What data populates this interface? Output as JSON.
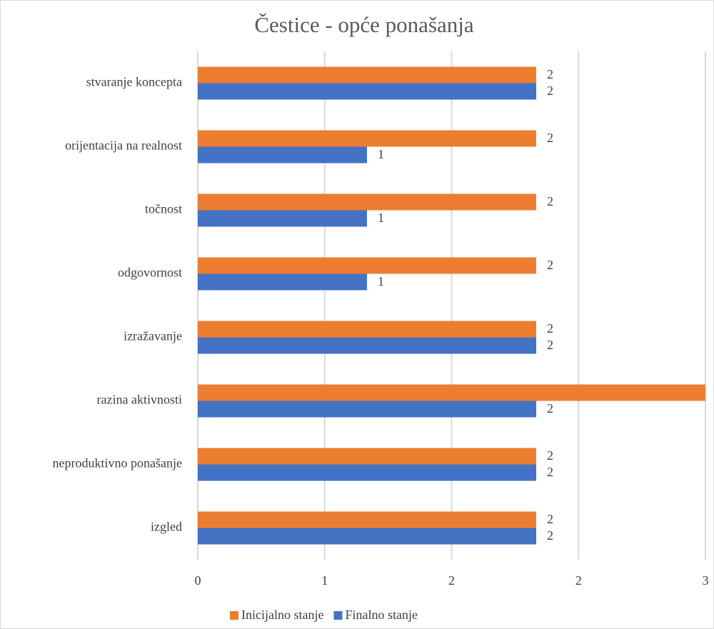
{
  "chart_data": {
    "type": "bar",
    "orientation": "horizontal",
    "title": "Čestice - opće ponašanja",
    "categories": [
      "stvaranje koncepta",
      "orijentacija na realnost",
      "točnost",
      "odgovornost",
      "izražavanje",
      "razina aktivnosti",
      "neproduktivno ponašanje",
      "izgled"
    ],
    "series": [
      {
        "name": "Inicijalno stanje",
        "color": "#ed7d31",
        "values": [
          2,
          2,
          2,
          2,
          2,
          3,
          2,
          2
        ]
      },
      {
        "name": "Finalno stanje",
        "color": "#4472c4",
        "values": [
          2,
          1,
          1,
          1,
          2,
          2,
          2,
          2
        ]
      }
    ],
    "xlim": [
      0,
      3
    ],
    "xticks": [
      0,
      {
        "value": 0.75,
        "label": "1"
      },
      {
        "value": 1.5,
        "label": "2"
      },
      {
        "value": 2.25,
        "label": "2"
      },
      3
    ],
    "grid": true,
    "legend": "bottom"
  }
}
